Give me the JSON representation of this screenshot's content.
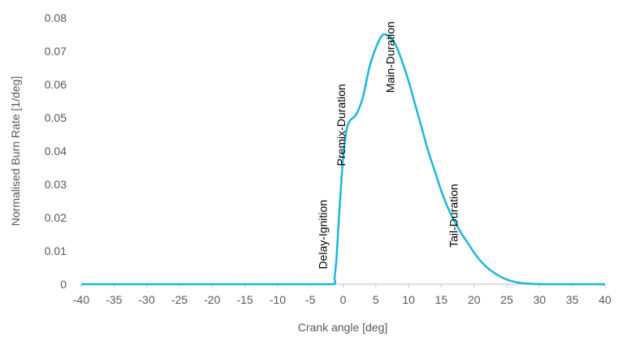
{
  "chart_data": {
    "type": "line",
    "title": "",
    "xlabel": "Crank angle [deg]",
    "ylabel": "Normalised Burn Rate [1/deg]",
    "xlim": [
      -40,
      40
    ],
    "ylim": [
      0,
      0.08
    ],
    "x_ticks": [
      "-40",
      "-35",
      "-30",
      "-25",
      "-20",
      "-15",
      "-10",
      "-5",
      "0",
      "5",
      "10",
      "15",
      "20",
      "25",
      "30",
      "35",
      "40"
    ],
    "y_ticks": [
      "0",
      "0.01",
      "0.02",
      "0.03",
      "0.04",
      "0.05",
      "0.06",
      "0.07",
      "0.08"
    ],
    "grid": false,
    "legend": "none",
    "series": [
      {
        "color": "#1ab8d8",
        "x": [
          -40,
          -35,
          -30,
          -25,
          -20,
          -15,
          -10,
          -5,
          -1.5,
          -1.3,
          -1,
          -0.7,
          -0.3,
          0,
          0.5,
          1,
          2,
          3,
          4,
          5,
          6,
          7,
          8,
          9,
          10,
          11,
          12,
          13,
          14,
          15,
          16,
          17,
          18,
          19,
          20,
          21,
          22,
          23,
          24,
          25,
          26,
          27,
          28,
          29,
          30,
          32,
          35,
          40
        ],
        "y": [
          0,
          0,
          0,
          0,
          0,
          0,
          0,
          0,
          0,
          0.002,
          0.008,
          0.018,
          0.03,
          0.038,
          0.046,
          0.049,
          0.051,
          0.056,
          0.065,
          0.071,
          0.0748,
          0.0745,
          0.072,
          0.067,
          0.061,
          0.054,
          0.047,
          0.04,
          0.034,
          0.028,
          0.023,
          0.019,
          0.0155,
          0.0125,
          0.0095,
          0.007,
          0.005,
          0.0035,
          0.0023,
          0.0014,
          0.0008,
          0.0004,
          0.0002,
          0.0001,
          3e-05,
          0,
          0,
          0
        ]
      }
    ],
    "annotations": [
      {
        "text": "Delay-Ignition",
        "x": -2.5,
        "y": 0.0045
      },
      {
        "text": "Premix-Duration",
        "x": 0.3,
        "y": 0.0355
      },
      {
        "text": "Main-Duration",
        "x": 7.8,
        "y": 0.0575
      },
      {
        "text": "Tail-Duration",
        "x": 17.5,
        "y": 0.011
      }
    ]
  }
}
